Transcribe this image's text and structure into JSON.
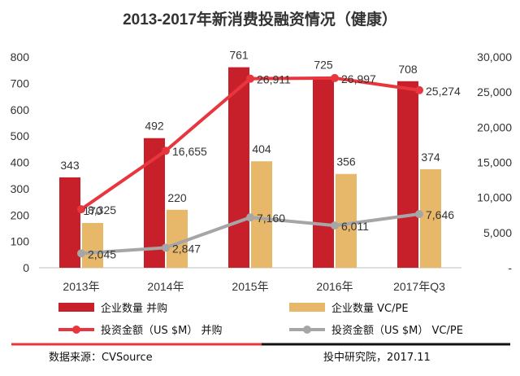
{
  "chart_data": {
    "type": "bar",
    "title": "2013-2017年新消费投融资情况（健康）",
    "categories": [
      "2013年",
      "2014年",
      "2015年",
      "2016年",
      "2017年Q3"
    ],
    "ylim": [
      0,
      800
    ],
    "yticks": [
      "0",
      "100",
      "200",
      "300",
      "400",
      "500",
      "600",
      "700",
      "800"
    ],
    "y2lim": [
      0,
      30000
    ],
    "y2ticks": [
      "-",
      "5,000",
      "10,000",
      "15,000",
      "20,000",
      "25,000",
      "30,000"
    ],
    "grid": false,
    "legend_position": "bottom",
    "series": [
      {
        "name": "企业数量 并购",
        "kind": "bar",
        "axis": "left",
        "color": "#c8202a",
        "values": [
          343,
          492,
          761,
          725,
          708
        ],
        "labels": [
          "343",
          "492",
          "761",
          "725",
          "708"
        ]
      },
      {
        "name": "企业数量 VC/PE",
        "kind": "bar",
        "axis": "left",
        "color": "#e8b86a",
        "values": [
          170,
          220,
          404,
          356,
          374
        ],
        "labels": [
          "170",
          "220",
          "404",
          "356",
          "374"
        ]
      },
      {
        "name": "投资金额（US $M） 并购",
        "kind": "line",
        "axis": "right",
        "color": "#e8363e",
        "values": [
          8325,
          16655,
          26911,
          26997,
          25274
        ],
        "labels": [
          "8,325",
          "16,655",
          "26,911",
          "26,997",
          "25,274"
        ]
      },
      {
        "name": "投资金额（US $M） VC/PE",
        "kind": "line",
        "axis": "right",
        "color": "#a6a6a6",
        "values": [
          2045,
          2847,
          7160,
          6011,
          7646
        ],
        "labels": [
          "2,045",
          "2,847",
          "7,160",
          "6,011",
          "7,646"
        ]
      }
    ]
  },
  "footer": {
    "source": "数据来源：CVSource",
    "credit": "投中研究院，2017.11"
  },
  "colors": {
    "footer_rule_left": "#e8363e",
    "footer_rule_right": "#111111"
  }
}
